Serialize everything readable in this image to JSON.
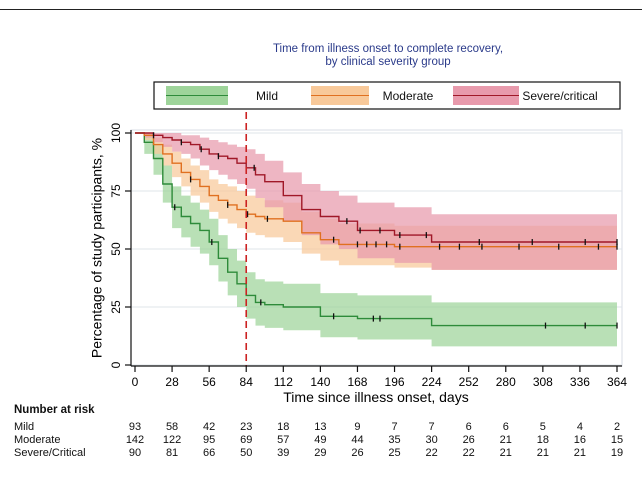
{
  "chart_data": {
    "type": "line",
    "title": "Time from illness onset to complete recovery,\nby clinical severity group",
    "xlabel": "Time since illness onset, days",
    "ylabel": "Percentage of study participants, %",
    "xlim": [
      0,
      364
    ],
    "ylim": [
      0,
      100
    ],
    "x_ticks": [
      "0",
      "28",
      "56",
      "84",
      "112",
      "140",
      "168",
      "196",
      "224",
      "252",
      "280",
      "308",
      "336",
      "364"
    ],
    "y_ticks": [
      "0",
      "25",
      "50",
      "75",
      "100"
    ],
    "reference_line": {
      "x": 84,
      "style": "dashed",
      "color": "#cc2222"
    },
    "legend": {
      "position": "top",
      "entries": [
        "Mild",
        "Moderate",
        "Severe/critical"
      ]
    },
    "series": [
      {
        "name": "Mild",
        "color": "#2e8b3a",
        "band_color": "#9ed49a",
        "x": [
          0,
          7,
          14,
          21,
          28,
          35,
          42,
          49,
          56,
          63,
          70,
          77,
          84,
          91,
          98,
          112,
          140,
          168,
          196,
          224,
          252,
          280,
          308,
          336,
          364
        ],
        "y": [
          100,
          96,
          89,
          78,
          68,
          64,
          61,
          58,
          53,
          46,
          40,
          35,
          30,
          27,
          26,
          25,
          21,
          20,
          20,
          17,
          17,
          17,
          17,
          17,
          17
        ],
        "lower": [
          100,
          91,
          82,
          70,
          59,
          55,
          51,
          48,
          43,
          36,
          30,
          25,
          20,
          17,
          16,
          15,
          12,
          11,
          11,
          8,
          8,
          8,
          8,
          8,
          8
        ],
        "upper": [
          100,
          99,
          95,
          86,
          77,
          73,
          70,
          67,
          63,
          56,
          50,
          45,
          40,
          37,
          36,
          35,
          31,
          30,
          30,
          27,
          27,
          27,
          27,
          27,
          27
        ]
      },
      {
        "name": "Moderate",
        "color": "#e07020",
        "band_color": "#f8c99a",
        "x": [
          0,
          7,
          14,
          21,
          28,
          35,
          42,
          49,
          56,
          63,
          70,
          77,
          84,
          91,
          98,
          112,
          126,
          140,
          154,
          168,
          196,
          224,
          252,
          280,
          308,
          336,
          364
        ],
        "y": [
          100,
          99,
          95,
          91,
          87,
          83,
          80,
          77,
          73,
          71,
          69,
          67,
          65,
          64,
          63,
          62,
          57,
          54,
          52,
          52,
          51,
          51,
          51,
          51,
          51,
          51,
          51
        ],
        "lower": [
          100,
          97,
          91,
          86,
          81,
          77,
          73,
          70,
          66,
          63,
          61,
          59,
          57,
          56,
          55,
          53,
          48,
          45,
          43,
          43,
          42,
          41,
          41,
          41,
          41,
          41,
          41
        ],
        "upper": [
          100,
          100,
          98,
          95,
          92,
          89,
          86,
          84,
          80,
          78,
          77,
          75,
          73,
          72,
          71,
          70,
          66,
          63,
          61,
          61,
          60,
          60,
          60,
          60,
          60,
          60,
          60
        ]
      },
      {
        "name": "Severe/critical",
        "color": "#a01828",
        "band_color": "#e89aac",
        "x": [
          0,
          7,
          14,
          21,
          28,
          35,
          42,
          49,
          56,
          63,
          70,
          77,
          84,
          91,
          98,
          112,
          126,
          140,
          154,
          168,
          196,
          224,
          252,
          280,
          308,
          336,
          364
        ],
        "y": [
          100,
          100,
          99,
          98,
          97,
          96,
          95,
          93,
          91,
          90,
          89,
          87,
          85,
          82,
          79,
          73,
          67,
          64,
          62,
          58,
          56,
          53,
          53,
          53,
          53,
          53,
          53
        ],
        "lower": [
          100,
          98,
          96,
          94,
          92,
          91,
          89,
          86,
          84,
          82,
          80,
          78,
          76,
          72,
          68,
          62,
          56,
          52,
          50,
          46,
          44,
          41,
          41,
          41,
          41,
          41,
          41
        ],
        "upper": [
          100,
          100,
          100,
          100,
          100,
          99,
          99,
          98,
          97,
          96,
          95,
          94,
          93,
          91,
          88,
          83,
          78,
          75,
          73,
          70,
          68,
          65,
          65,
          65,
          65,
          65,
          65
        ]
      }
    ],
    "number_at_risk": {
      "title": "Number at risk",
      "times": [
        0,
        28,
        56,
        84,
        112,
        140,
        168,
        196,
        224,
        252,
        280,
        308,
        336,
        364
      ],
      "rows": [
        {
          "label": "Mild",
          "values": [
            "93",
            "58",
            "42",
            "23",
            "18",
            "13",
            "9",
            "7",
            "7",
            "6",
            "6",
            "5",
            "4",
            "2"
          ]
        },
        {
          "label": "Moderate",
          "values": [
            "142",
            "122",
            "95",
            "69",
            "57",
            "49",
            "44",
            "35",
            "30",
            "26",
            "21",
            "18",
            "16",
            "15"
          ]
        },
        {
          "label": "Severe/Critical",
          "values": [
            "90",
            "81",
            "66",
            "50",
            "39",
            "29",
            "26",
            "25",
            "22",
            "22",
            "21",
            "21",
            "21",
            "19"
          ]
        }
      ]
    }
  }
}
